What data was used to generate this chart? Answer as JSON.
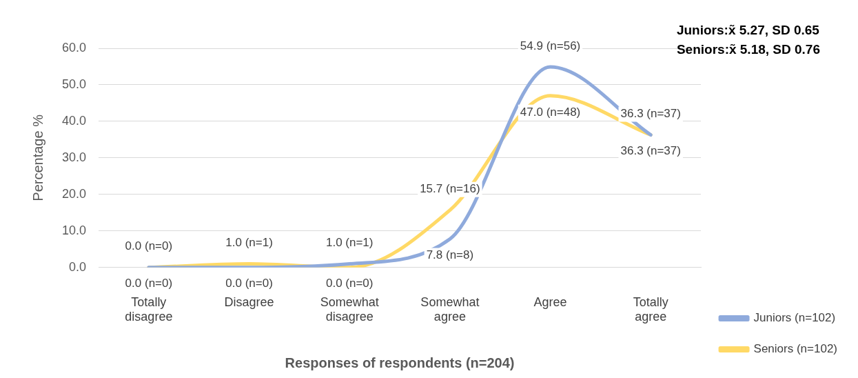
{
  "chart_data": {
    "type": "line",
    "categories": [
      "Totally disagree",
      "Disagree",
      "Somewhat disagree",
      "Somewhat agree",
      "Agree",
      "Totally agree"
    ],
    "series": [
      {
        "name": "Juniors (n=102)",
        "color": "#8faadc",
        "values": [
          0.0,
          0.0,
          1.0,
          7.8,
          54.9,
          36.3
        ],
        "value_labels": [
          "0.0 (n=0)",
          "0.0 (n=0)",
          "1.0 (n=1)",
          "7.8 (n=8)",
          "54.9 (n=56)",
          "36.3 (n=37)"
        ]
      },
      {
        "name": "Seniors (n=102)",
        "color": "#ffd966",
        "values": [
          0.0,
          1.0,
          0.0,
          15.7,
          47.0,
          36.3
        ],
        "value_labels": [
          "0.0 (n=0)",
          "1.0 (n=1)",
          "0.0 (n=0)",
          "15.7 (n=16)",
          "47.0 (n=48)",
          "36.3 (n=37)"
        ]
      }
    ],
    "xlabel": "Responses of respondents (n=204)",
    "ylabel": "Percentage %",
    "ylim": [
      0,
      60
    ],
    "yticks": [
      {
        "value": 0,
        "label": "0.0"
      },
      {
        "value": 10,
        "label": "10.0"
      },
      {
        "value": 20,
        "label": "20.0"
      },
      {
        "value": 30,
        "label": "30.0"
      },
      {
        "value": 40,
        "label": "40.0"
      },
      {
        "value": 50,
        "label": "50.0"
      },
      {
        "value": 60,
        "label": "60.0"
      }
    ],
    "grid": "y",
    "legend": "bottom right",
    "marker": "none",
    "line_style": "solid",
    "annotations": [
      "Juniors:x̃ 5.27, SD 0.65",
      "Seniors:x̃ 5.18, SD 0.76"
    ]
  }
}
